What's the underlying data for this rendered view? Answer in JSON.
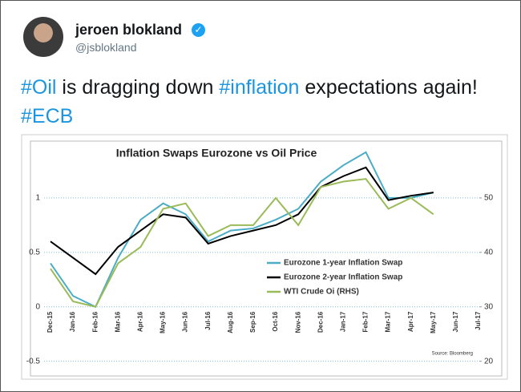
{
  "tweet": {
    "name": "jeroen blokland",
    "handle": "@jsblokland",
    "text": [
      {
        "text": "#Oil",
        "hashtag": true
      },
      {
        "text": " is dragging down ",
        "hashtag": false
      },
      {
        "text": "#inflation",
        "hashtag": true
      },
      {
        "text": " expectations again! ",
        "hashtag": false
      },
      {
        "text": "#ECB",
        "hashtag": true
      }
    ]
  },
  "chart_data": {
    "type": "line",
    "title": "Inflation Swaps Eurozone vs Oil Price",
    "source": "Source: Bloomberg",
    "x": [
      "Dec-15",
      "Jan-16",
      "Feb-16",
      "Mar-16",
      "Apr-16",
      "May-16",
      "Jun-16",
      "Jul-16",
      "Aug-16",
      "Sep-16",
      "Oct-16",
      "Nov-16",
      "Dec-16",
      "Jan-17",
      "Feb-17",
      "Mar-17",
      "Apr-17",
      "May-17",
      "Jun-17",
      "Jul-17"
    ],
    "series": [
      {
        "name": "Eurozone 1-year Inflation Swap",
        "color": "#4bacc6",
        "values": [
          0.4,
          0.1,
          0.0,
          0.45,
          0.8,
          0.95,
          0.85,
          0.6,
          0.7,
          0.72,
          0.8,
          0.9,
          1.15,
          1.3,
          1.42,
          1.0,
          1.0,
          1.05,
          null,
          null
        ]
      },
      {
        "name": "Eurozone 2-year Inflation Swap",
        "color": "#000000",
        "values": [
          0.6,
          0.45,
          0.3,
          0.55,
          0.7,
          0.85,
          0.82,
          0.58,
          0.65,
          0.7,
          0.75,
          0.85,
          1.1,
          1.2,
          1.28,
          0.98,
          1.02,
          1.05,
          null,
          null
        ]
      },
      {
        "name": "WTI Crude Oi (RHS)",
        "color": "#9bbb59",
        "axis": "y2",
        "values": [
          37,
          31,
          30,
          38,
          41,
          48,
          49,
          43,
          45,
          45,
          50,
          45,
          52,
          53,
          53.5,
          48,
          50,
          47,
          null,
          null
        ]
      }
    ],
    "ylim": [
      -0.65,
      1.5
    ],
    "yticks": [
      -0.5,
      0,
      0.5,
      1
    ],
    "y2lim": [
      17,
      60
    ],
    "y2ticks": [
      20,
      30,
      40,
      50
    ],
    "grid": true
  }
}
